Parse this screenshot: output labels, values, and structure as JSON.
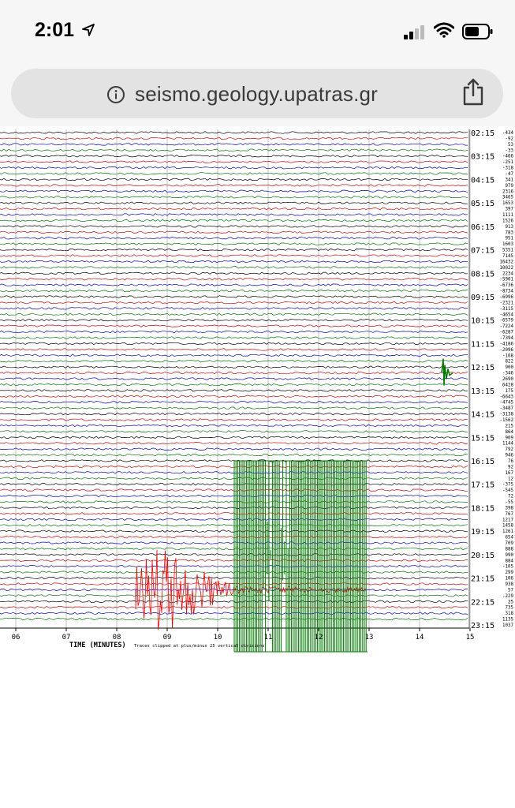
{
  "status_bar": {
    "time": "2:01",
    "location_icon": "location-arrow-icon",
    "signal_icon": "cellular-signal-icon",
    "wifi_icon": "wifi-icon",
    "battery_icon": "battery-icon"
  },
  "browser": {
    "url": "seismo.geology.upatras.gr",
    "info_icon": "info-icon",
    "share_icon": "share-icon"
  },
  "helicorder": {
    "hour_labels": [
      "02:15",
      "03:15",
      "04:15",
      "05:15",
      "06:15",
      "07:15",
      "08:15",
      "09:15",
      "10:15",
      "11:15",
      "12:15",
      "13:15",
      "14:15",
      "15:15",
      "16:15",
      "17:15",
      "18:15",
      "19:15",
      "20:15",
      "21:15",
      "22:15",
      "23:15"
    ],
    "trace_offsets": [
      "-434",
      "-92",
      "53",
      "-33",
      "-466",
      "-251",
      "-318",
      "-47",
      "341",
      "979",
      "2316",
      "3465",
      "1653",
      "397",
      "1111",
      "1526",
      "913",
      "783",
      "951",
      "1603",
      "5351",
      "7145",
      "16432",
      "10022",
      "2234",
      "-5901",
      "-6736",
      "-8734",
      "-6996",
      "-2321",
      "-3115",
      "-4654",
      "-6579",
      "-7224",
      "-6287",
      "-7394",
      "-4186",
      "-2096",
      "-168",
      "822",
      "900",
      "-346",
      "2690",
      "6428",
      "175",
      "-6643",
      "-4745",
      "-3487",
      "-3138",
      "-1562",
      "215",
      "864",
      "909",
      "1144",
      "792",
      "946",
      "76",
      "92",
      "167",
      "12",
      "-375",
      "-545",
      "72",
      "-55",
      "398",
      "767",
      "1217",
      "1458",
      "1261",
      "654",
      "709",
      "888",
      "990",
      "884",
      "-105",
      "299",
      "106",
      "938",
      "57",
      "-229",
      "25",
      "735",
      "318",
      "1135",
      "1037"
    ],
    "x_ticks": [
      "06",
      "07",
      "08",
      "09",
      "10",
      "11",
      "12",
      "13",
      "14",
      "15"
    ],
    "time_label": "TIME (MINUTES)",
    "clip_note": "Traces clipped at plus/minus 25 vertical divisions",
    "trace_colors": [
      "#000000",
      "#e00000",
      "#0000e0",
      "#007a00"
    ]
  }
}
